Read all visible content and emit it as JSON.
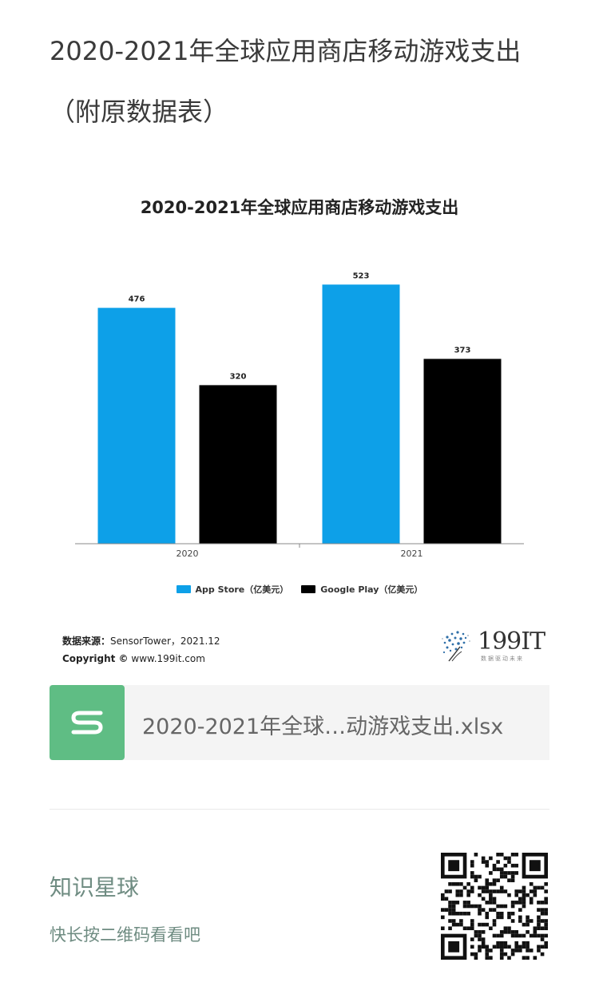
{
  "page": {
    "title": "2020-2021年全球应用商店移动游戏支出（附原数据表）"
  },
  "chart_data": {
    "type": "bar",
    "title": "2020-2021年全球应用商店移动游戏支出",
    "categories": [
      "2020",
      "2021"
    ],
    "series": [
      {
        "name": "App Store（亿美元）",
        "values": [
          476,
          523
        ],
        "color": "#0da0e8"
      },
      {
        "name": "Google Play（亿美元）",
        "values": [
          320,
          373
        ],
        "color": "#000000"
      }
    ],
    "ylim": [
      0,
      560
    ],
    "grid": false,
    "legend": "bottom"
  },
  "source": {
    "label": "数据来源：",
    "text": "SensorTower，2021.12",
    "copyright_label": "Copyright ©",
    "copyright_text": "www.199it.com"
  },
  "logo": {
    "name": "199IT",
    "tagline": "数据驱动未来"
  },
  "file": {
    "name": "2020-2021年全球…动游戏支出.xlsx",
    "icon": "spreadsheet-s-icon",
    "icon_color": "#5fbd84"
  },
  "planet": {
    "title": "知识星球",
    "subtitle": "快长按二维码看看吧"
  }
}
